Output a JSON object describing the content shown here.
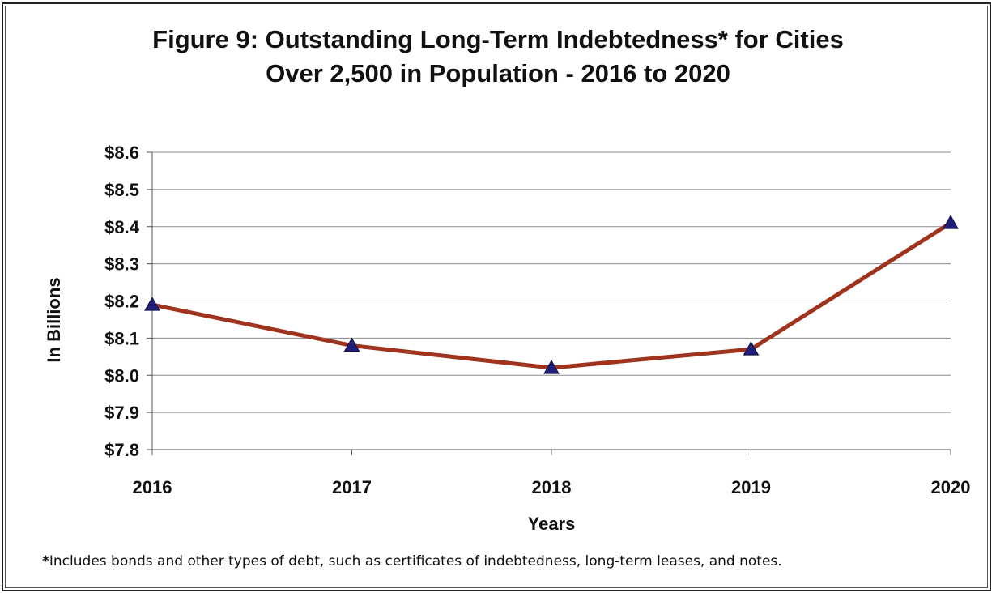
{
  "chart_data": {
    "type": "line",
    "title_line1": "Figure 9:  Outstanding Long-Term Indebtedness* for Cities",
    "title_line2": "Over 2,500 in Population - 2016 to 2020",
    "xlabel": "Years",
    "ylabel": "In Billions",
    "categories": [
      "2016",
      "2017",
      "2018",
      "2019",
      "2020"
    ],
    "series": [
      {
        "values": [
          8.19,
          8.08,
          8.02,
          8.07,
          8.41
        ]
      }
    ],
    "ylim": [
      7.8,
      8.6
    ],
    "yticks": [
      7.8,
      7.9,
      8.0,
      8.1,
      8.2,
      8.3,
      8.4,
      8.5,
      8.6
    ],
    "ytick_labels": [
      "$7.8",
      "$7.9",
      "$8.0",
      "$8.1",
      "$8.2",
      "$8.3",
      "$8.4",
      "$8.5",
      "$8.6"
    ],
    "grid": true,
    "line_color": "#A0331E",
    "marker_color": "#1F1F7A",
    "marker": "triangle"
  },
  "footnote": {
    "star": "*",
    "text": "Includes bonds and other types of debt, such as certificates of indebtedness, long-term leases, and notes."
  }
}
